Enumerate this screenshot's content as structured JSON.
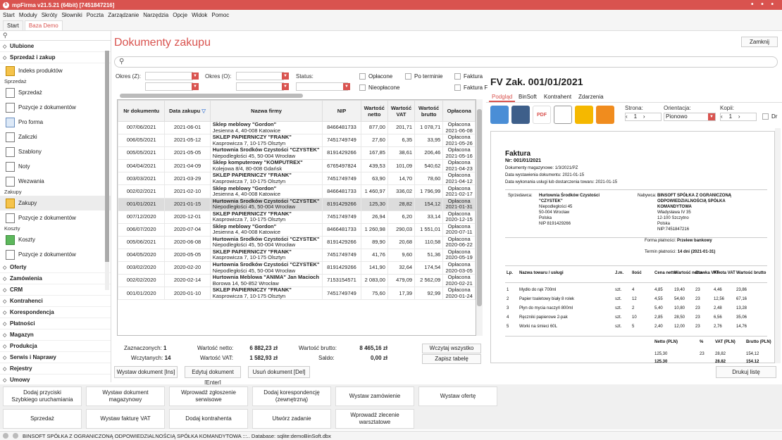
{
  "app": {
    "title": "mpFirma v21.5.21 (64bit) [7451847216]",
    "window_dots": "• • •"
  },
  "menu": [
    "Start",
    "Moduły",
    "Skróty",
    "Słowniki",
    "Poczta",
    "Zarządzanie",
    "Narzędzia",
    "Opcje",
    "Widok",
    "Pomoc"
  ],
  "apptabs": [
    "Start",
    "Baza Demo"
  ],
  "sidebar": {
    "search_icon": "search-icon",
    "sections_top": [
      {
        "label": "Ulubione",
        "collapsed": true
      },
      {
        "label": "Sprzedaż i zakup",
        "collapsed": false
      }
    ],
    "indeks": "Indeks produktów",
    "group_sprzedaz": "Sprzedaż",
    "sprzedaz_items": [
      "Sprzedaż",
      "Pozycje z dokumentów",
      "Pro forma",
      "Zaliczki",
      "Szablony",
      "Noty",
      "Wezwania"
    ],
    "group_zakupy": "Zakupy",
    "zakupy_items": [
      "Zakupy",
      "Pozycje z dokumentów"
    ],
    "group_koszty": "Koszty",
    "koszty_items": [
      "Koszty",
      "Pozycje z dokumentów"
    ],
    "sections_bottom": [
      "Oferty",
      "Zamówienia",
      "CRM",
      "Kontrahenci",
      "Korespondencja",
      "Płatności",
      "Magazyn",
      "Produkcja",
      "Serwis i Naprawy",
      "Rejestry",
      "Umowy",
      "Projekty i Zlecenia"
    ]
  },
  "page": {
    "title": "Dokumenty zakupu",
    "close_button": "Zamknij",
    "search_placeholder": ""
  },
  "filters": {
    "okres_z": "Okres (Z):",
    "okres_o": "Okres (O):",
    "status": "Status:",
    "checks": [
      "Opłacone",
      "Po terminie",
      "Faktura",
      "Nieopłacone",
      "Faktura F"
    ]
  },
  "grid": {
    "columns": [
      "Nr dokumentu",
      "Data zakupu",
      "Nazwa firmy",
      "NIP",
      "Wartość netto",
      "Wartość VAT",
      "Wartość brutto",
      "Opłacona"
    ],
    "rows": [
      {
        "nr": "007/06/2021",
        "date": "2021-06-01",
        "firm": "Sklep meblowy \"Gordon\"",
        "addr": "Jesienna 4, 40-008 Katowice",
        "nip": "8466481733",
        "net": "877,00",
        "vat": "201,71",
        "gross": "1 078,71",
        "paid": "Opłacona",
        "paid_date": "2021-06-08"
      },
      {
        "nr": "006/05/2021",
        "date": "2021-05-12",
        "firm": "SKLEP PAPIERNICZY \"FRANK\"",
        "addr": "Kasprowicza 7, 10-175 Olsztyn",
        "nip": "7451749749",
        "net": "27,60",
        "vat": "6,35",
        "gross": "33,95",
        "paid": "Opłacona",
        "paid_date": "2021-05-26"
      },
      {
        "nr": "005/05/2021",
        "date": "2021-05-05",
        "firm": "Hurtownia Środków Czystości \"CZYSTEK\"",
        "addr": "Niepodległości 45, 50-004 Wrocław",
        "nip": "8191429266",
        "net": "167,85",
        "vat": "38,61",
        "gross": "206,46",
        "paid": "Opłacona",
        "paid_date": "2021-05-16"
      },
      {
        "nr": "004/04/2021",
        "date": "2021-04-09",
        "firm": "Sklep komputerowy \"KOMPUTREX\"",
        "addr": "Kolejowa 8/4, 80-008 Gdańsk",
        "nip": "6765497824",
        "net": "439,53",
        "vat": "101,09",
        "gross": "540,62",
        "paid": "Opłacona",
        "paid_date": "2021-04-23"
      },
      {
        "nr": "003/03/2021",
        "date": "2021-03-29",
        "firm": "SKLEP PAPIERNICZY \"FRANK\"",
        "addr": "Kasprowicza 7, 10-175 Olsztyn",
        "nip": "7451749749",
        "net": "63,90",
        "vat": "14,70",
        "gross": "78,60",
        "paid": "Opłacona",
        "paid_date": "2021-04-12"
      },
      {
        "nr": "002/02/2021",
        "date": "2021-02-10",
        "firm": "Sklep meblowy \"Gordon\"",
        "addr": "Jesienna 4, 40-008 Katowice",
        "nip": "8466481733",
        "net": "1 460,97",
        "vat": "336,02",
        "gross": "1 796,99",
        "paid": "Opłacona",
        "paid_date": "2021-02-17"
      },
      {
        "nr": "001/01/2021",
        "date": "2021-01-15",
        "firm": "Hurtownia Środków Czystości \"CZYSTEK\"",
        "addr": "Niepodległości 45, 50-004 Wrocław",
        "nip": "8191429266",
        "net": "125,30",
        "vat": "28,82",
        "gross": "154,12",
        "paid": "Opłacona",
        "paid_date": "2021-01-31",
        "selected": true
      },
      {
        "nr": "007/12/2020",
        "date": "2020-12-01",
        "firm": "SKLEP PAPIERNICZY \"FRANK\"",
        "addr": "Kasprowicza 7, 10-175 Olsztyn",
        "nip": "7451749749",
        "net": "26,94",
        "vat": "6,20",
        "gross": "33,14",
        "paid": "Opłacona",
        "paid_date": "2020-12-15"
      },
      {
        "nr": "006/07/2020",
        "date": "2020-07-04",
        "firm": "Sklep meblowy \"Gordon\"",
        "addr": "Jesienna 4, 40-008 Katowice",
        "nip": "8466481733",
        "net": "1 260,98",
        "vat": "290,03",
        "gross": "1 551,01",
        "paid": "Opłacona",
        "paid_date": "2020-07-11"
      },
      {
        "nr": "005/06/2021",
        "date": "2020-06-08",
        "firm": "Hurtownia Środków Czystości \"CZYSTEK\"",
        "addr": "Niepodległości 45, 50-004 Wrocław",
        "nip": "8191429266",
        "net": "89,90",
        "vat": "20,68",
        "gross": "110,58",
        "paid": "Opłacona",
        "paid_date": "2020-06-22"
      },
      {
        "nr": "004/05/2020",
        "date": "2020-05-05",
        "firm": "SKLEP PAPIERNICZY \"FRANK\"",
        "addr": "Kasprowicza 7, 10-175 Olsztyn",
        "nip": "7451749749",
        "net": "41,76",
        "vat": "9,60",
        "gross": "51,36",
        "paid": "Opłacona",
        "paid_date": "2020-05-19"
      },
      {
        "nr": "003/02/2020",
        "date": "2020-02-20",
        "firm": "Hurtownia Środków Czystości \"CZYSTEK\"",
        "addr": "Niepodległości 45, 50-004 Wrocław",
        "nip": "8191429266",
        "net": "141,90",
        "vat": "32,64",
        "gross": "174,54",
        "paid": "Opłacona",
        "paid_date": "2020-03-05"
      },
      {
        "nr": "002/02/2020",
        "date": "2020-02-14",
        "firm": "Hurtownia Meblowa \"ANIMA\" Jan Macioch",
        "addr": "Borowa 14, 50-852 Wrocław",
        "nip": "7153154571",
        "net": "2 083,00",
        "vat": "479,09",
        "gross": "2 562,09",
        "paid": "Opłacona",
        "paid_date": "2020-02-21"
      },
      {
        "nr": "001/01/2020",
        "date": "2020-01-10",
        "firm": "SKLEP PAPIERNICZY \"FRANK\"",
        "addr": "Kasprowicza 7, 10-175 Olsztyn",
        "nip": "7451749749",
        "net": "75,60",
        "vat": "17,39",
        "gross": "92,99",
        "paid": "Opłacona",
        "paid_date": "2020-01-24"
      }
    ]
  },
  "summary": {
    "selected_label": "Zaznaczonych:",
    "selected_value": "1",
    "loaded_label": "Wczytanych:",
    "loaded_value": "14",
    "net_label": "Wartość netto:",
    "net_value": "6 882,23 zł",
    "vat_label": "Wartość VAT:",
    "vat_value": "1 582,93 zł",
    "gross_label": "Wartość brutto:",
    "gross_value": "8 465,16 zł",
    "saldo_label": "Saldo:",
    "saldo_value": "0,00 zł",
    "load_all": "Wczytaj wszystko",
    "save_table": "Zapisz tabelę"
  },
  "actions": {
    "issue": "Wystaw dokument [Ins]",
    "edit": "Edytuj dokument [Enter]",
    "delete": "Usuń dokument [Del]",
    "print_list": "Drukuj listę"
  },
  "quick": {
    "row1": [
      "Dodaj przyciski\nSzybkiego uruchamiania",
      "Wystaw dokument\nmagazynowy",
      "Wprowadź zgłoszenie\nserwisowe",
      "Dodaj korespondencję\n(zewnętrzną)",
      "Wystaw zamówienie",
      "Wystaw ofertę"
    ],
    "row2": [
      "Sprzedaż",
      "Wystaw fakturę VAT",
      "Dodaj kontrahenta",
      "Utwórz zadanie",
      "Wprowadź zlecenie\nwarsztatowe"
    ]
  },
  "status": {
    "text": "BINSOFT SPÓŁKA Z OGRANICZONĄ ODPOWIEDZIALNOŚCIĄ SPÓŁKA KOMANDYTOWA :::.. Database: sqlite:demoBinSoft.dbx"
  },
  "preview": {
    "title": "FV Zak. 001/01/2021",
    "tabs": [
      "Podgląd",
      "BinSoft",
      "Kontrahent",
      "Zdarzenia"
    ],
    "strona_label": "Strona:",
    "strona_value": "1",
    "orient_label": "Orientacja:",
    "orient_value": "Pionowo",
    "copies_label": "Kopii:",
    "copies_value": "1",
    "dr_label": "Dr",
    "doc": {
      "heading": "Faktura",
      "number": "Nr: 001/01/2021",
      "meta": [
        "Dokumenty magazynowe: 1/3/2021/PZ",
        "Data wystawienia dokumentu: 2021-01-15",
        "Data wykonania usługi lub dostarczenia towaru: 2021-01-15"
      ],
      "seller_label": "Sprzedawca:",
      "seller": [
        "Hurtownia Środków Czystości",
        "\"CZYSTEK\"",
        "Niepodległości 45",
        "50-004 Wrocław",
        "Polska",
        "NIP 8191429266"
      ],
      "buyer_label": "Nabywca:",
      "buyer": [
        "BINSOFT SPÓŁKA Z OGRANICZONĄ",
        "ODPOWIEDZIALNOŚCIĄ SPÓŁKA",
        "KOMANDYTOWA",
        "Władysława IV 35",
        "12-100 Szczytno",
        "Polska",
        "NIP:7451847216"
      ],
      "payment_label": "Forma płatności:",
      "payment": "Przelew bankowy",
      "term_label": "Termin płatności:",
      "term": "14 dni (2021-01-31)",
      "cols": [
        "Lp.",
        "Nazwa towaru / usługi",
        "J.m.",
        "Ilość",
        "Cena netto",
        "Wartość netto",
        "Stawka VAT",
        "Kwota VAT",
        "Wartość brutto"
      ],
      "items": [
        [
          "1",
          "Mydło do rąk 700ml",
          "szt.",
          "4",
          "4,85",
          "19,40",
          "23",
          "4,46",
          "23,86"
        ],
        [
          "2",
          "Papier toaletowy biały 8 rolek",
          "szt.",
          "12",
          "4,55",
          "54,60",
          "23",
          "12,56",
          "67,16"
        ],
        [
          "3",
          "Płyn do mycia naczyń 800ml",
          "szt.",
          "2",
          "5,40",
          "10,80",
          "23",
          "2,48",
          "13,28"
        ],
        [
          "4",
          "Ręczniki papierowe 2-pak",
          "szt.",
          "10",
          "2,85",
          "28,50",
          "23",
          "6,56",
          "35,06"
        ],
        [
          "5",
          "Worki na śmieci 60L",
          "szt.",
          "5",
          "2,40",
          "12,00",
          "23",
          "2,76",
          "14,76"
        ]
      ],
      "totals_cols": [
        "Netto (PLN)",
        "%",
        "VAT (PLN)",
        "Brutto (PLN)"
      ],
      "totals": [
        "125,30",
        "23",
        "28,82",
        "154,12"
      ],
      "totals2": [
        "125,30",
        "",
        "28,82",
        "154,12"
      ]
    }
  }
}
